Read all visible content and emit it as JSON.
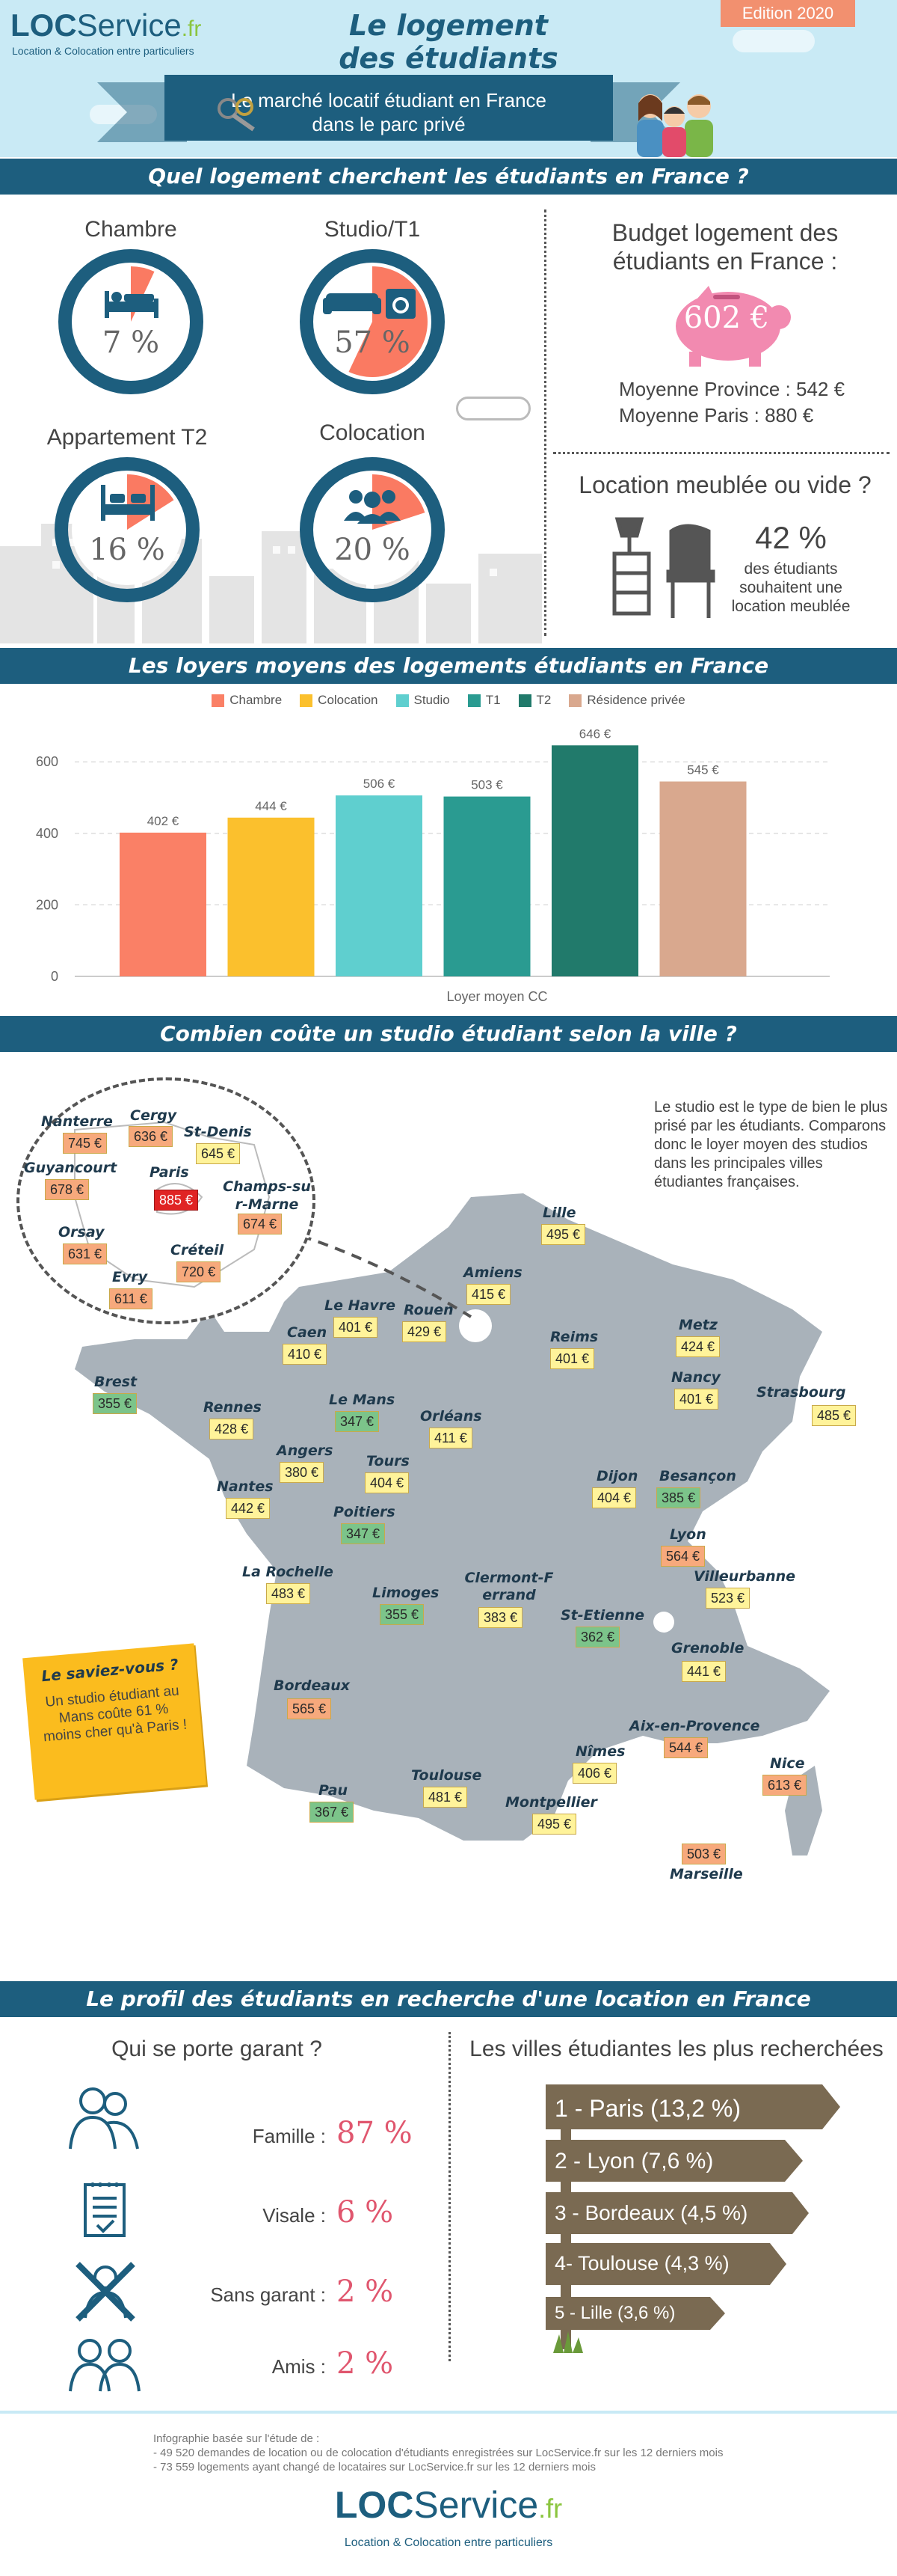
{
  "header": {
    "brand_loc": "LOC",
    "brand_service": "Service",
    "brand_tld": ".fr",
    "brand_tagline": "Location & Colocation entre particuliers",
    "title_line1": "Le logement",
    "title_line2": "des étudiants",
    "subtitle_line1": "Le marché locatif étudiant en France",
    "subtitle_line2": "dans le parc privé",
    "edition": "Edition 2020"
  },
  "section1": {
    "title": "Quel logement cherchent les étudiants en France ?",
    "donuts": [
      {
        "label": "Chambre",
        "value": "7 %",
        "fraction": 0.07,
        "icon": "bed-icon"
      },
      {
        "label": "Studio/T1",
        "value": "57 %",
        "fraction": 0.57,
        "icon": "sofa-icon"
      },
      {
        "label": "Appartement T2",
        "value": "16 %",
        "fraction": 0.16,
        "icon": "double-bed-icon"
      },
      {
        "label": "Colocation",
        "value": "20 %",
        "fraction": 0.2,
        "icon": "group-icon"
      }
    ],
    "budget_title_line1": "Budget logement des",
    "budget_title_line2": "étudiants en France :",
    "budget_value": "602 €",
    "avg_province": "Moyenne Province : 542 €",
    "avg_paris": "Moyenne Paris : 880 €",
    "meuble_title": "Location meublée ou vide ?",
    "meuble_value": "42 %",
    "meuble_text_line1": "des étudiants",
    "meuble_text_line2": "souhaitent une",
    "meuble_text_line3": "location meublée"
  },
  "section2": {
    "title": "Les loyers moyens des logements étudiants en France",
    "xlabel": "Loyer moyen CC"
  },
  "chart_data": {
    "type": "bar",
    "categories": [
      "Chambre",
      "Colocation",
      "Studio",
      "T1",
      "T2",
      "Résidence privée"
    ],
    "values": [
      402,
      444,
      506,
      503,
      646,
      545
    ],
    "value_labels": [
      "402 €",
      "444 €",
      "506 €",
      "503 €",
      "646 €",
      "545 €"
    ],
    "colors": [
      "#fa8066",
      "#fbc02d",
      "#5fcfcf",
      "#2a9b91",
      "#217a6b",
      "#d9a88e"
    ],
    "yticks": [
      0,
      200,
      400,
      600
    ],
    "ylim": [
      0,
      680
    ],
    "xlabel": "Loyer moyen CC",
    "ylabel": "",
    "grid": true,
    "legend": "top"
  },
  "section3": {
    "title": "Combien coûte un studio étudiant selon la ville ?",
    "intro": "Le studio est le type de bien le plus prisé par les étudiants. Comparons donc le loyer moyen des studios dans les principales villes étudiantes françaises.",
    "did_you_know_title": "Le saviez-vous ?",
    "did_you_know_text": "Un studio étudiant au Mans coûte 61 % moins cher qu'à Paris !",
    "paris_cities": [
      {
        "name": "Nanterre",
        "price": "745 €"
      },
      {
        "name": "Cergy",
        "price": "636 €"
      },
      {
        "name": "St-Denis",
        "price": "645 €"
      },
      {
        "name": "Guyancourt",
        "price": "678 €"
      },
      {
        "name": "Paris",
        "price": "885 €"
      },
      {
        "name": "Champs-sur-Marne",
        "price": "674 €"
      },
      {
        "name": "Orsay",
        "price": "631 €"
      },
      {
        "name": "Créteil",
        "price": "720 €"
      },
      {
        "name": "Evry",
        "price": "611 €"
      }
    ],
    "cities": [
      {
        "name": "Lille",
        "price": "495 €"
      },
      {
        "name": "Amiens",
        "price": "415 €"
      },
      {
        "name": "Le Havre",
        "price": "401 €"
      },
      {
        "name": "Rouen",
        "price": "429 €"
      },
      {
        "name": "Caen",
        "price": "410 €"
      },
      {
        "name": "Reims",
        "price": "401 €"
      },
      {
        "name": "Metz",
        "price": "424 €"
      },
      {
        "name": "Nancy",
        "price": "401 €"
      },
      {
        "name": "Strasbourg",
        "price": "485 €"
      },
      {
        "name": "Brest",
        "price": "355 €"
      },
      {
        "name": "Rennes",
        "price": "428 €"
      },
      {
        "name": "Le Mans",
        "price": "347 €"
      },
      {
        "name": "Orléans",
        "price": "411 €"
      },
      {
        "name": "Angers",
        "price": "380 €"
      },
      {
        "name": "Tours",
        "price": "404 €"
      },
      {
        "name": "Nantes",
        "price": "442 €"
      },
      {
        "name": "Poitiers",
        "price": "347 €"
      },
      {
        "name": "Dijon",
        "price": "404 €"
      },
      {
        "name": "Besançon",
        "price": "385 €"
      },
      {
        "name": "Lyon",
        "price": "564 €"
      },
      {
        "name": "Villeurbanne",
        "price": "523 €"
      },
      {
        "name": "La Rochelle",
        "price": "483 €"
      },
      {
        "name": "Limoges",
        "price": "355 €"
      },
      {
        "name": "Clermont-Ferrand",
        "price": "383 €"
      },
      {
        "name": "St-Etienne",
        "price": "362 €"
      },
      {
        "name": "Grenoble",
        "price": "441 €"
      },
      {
        "name": "Bordeaux",
        "price": "565 €"
      },
      {
        "name": "Aix-en-Provence",
        "price": "544 €"
      },
      {
        "name": "Nîmes",
        "price": "406 €"
      },
      {
        "name": "Nice",
        "price": "613 €"
      },
      {
        "name": "Pau",
        "price": "367 €"
      },
      {
        "name": "Toulouse",
        "price": "481 €"
      },
      {
        "name": "Montpellier",
        "price": "495 €"
      },
      {
        "name": "Marseille",
        "price": "503 €"
      }
    ]
  },
  "section4": {
    "title": "Le profil des étudiants en recherche d'une location en France",
    "guarantor_title": "Qui se porte garant ?",
    "guarantors": [
      {
        "label": "Famille :",
        "value": "87 %",
        "icon": "family-icon"
      },
      {
        "label": "Visale :",
        "value": "6 %",
        "icon": "document-icon"
      },
      {
        "label": "Sans garant :",
        "value": "2 %",
        "icon": "crossed-person-icon"
      },
      {
        "label": "Amis :",
        "value": "2 %",
        "icon": "friends-icon"
      }
    ],
    "cities_title": "Les villes étudiantes les plus recherchées",
    "top_cities": [
      "1 - Paris (13,2 %)",
      "2 - Lyon (7,6 %)",
      "3 - Bordeaux (4,5 %)",
      "4- Toulouse (4,3 %)",
      "5 - Lille (3,6 %)"
    ]
  },
  "footer": {
    "source_line1": "Infographie basée sur l'étude de :",
    "source_line2": "- 49 520 demandes de location ou de colocation d'étudiants enregistrées sur LocService.fr sur les 12 derniers mois",
    "source_line3": "- 73 559 logements ayant changé de locataires sur LocService.fr sur les 12 derniers mois",
    "brand_loc": "LOC",
    "brand_service": "Service",
    "brand_tld": ".fr",
    "brand_tagline": "Location & Colocation entre particuliers"
  }
}
